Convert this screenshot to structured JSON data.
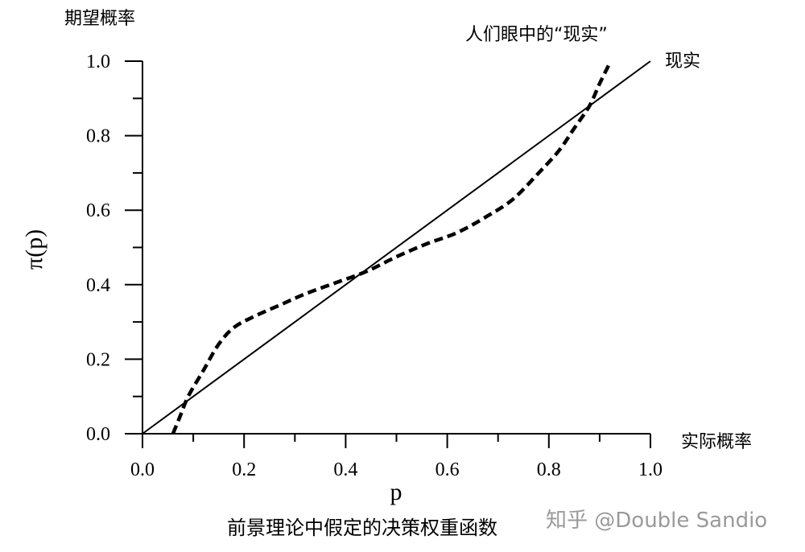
{
  "chart_data": {
    "type": "line",
    "ylabel": "π(p)",
    "xlabel": "p",
    "y_axis_caption": "期望概率",
    "x_axis_caption": "实际概率",
    "xlim": [
      0.0,
      1.0
    ],
    "ylim": [
      0.0,
      1.0
    ],
    "x_ticks": [
      "0.0",
      "0.2",
      "0.4",
      "0.6",
      "0.8",
      "1.0"
    ],
    "y_ticks": [
      "0.0",
      "0.2",
      "0.4",
      "0.6",
      "0.8",
      "1.0"
    ],
    "grid": false,
    "series": [
      {
        "name": "现实",
        "style": "solid",
        "x": [
          0.0,
          1.0
        ],
        "y": [
          0.0,
          1.0
        ]
      },
      {
        "name": "人们眼中的“现实”",
        "style": "dashed",
        "x": [
          0.06,
          0.075,
          0.09,
          0.12,
          0.15,
          0.18,
          0.22,
          0.27,
          0.32,
          0.38,
          0.44,
          0.5,
          0.56,
          0.62,
          0.68,
          0.73,
          0.78,
          0.82,
          0.85,
          0.88,
          0.9,
          0.92
        ],
        "y": [
          0.0,
          0.05,
          0.1,
          0.17,
          0.24,
          0.285,
          0.315,
          0.345,
          0.375,
          0.405,
          0.435,
          0.475,
          0.51,
          0.54,
          0.585,
          0.63,
          0.7,
          0.76,
          0.82,
          0.88,
          0.94,
          0.995
        ]
      }
    ]
  },
  "caption": "前景理论中假定的决策权重函数",
  "watermark": "知乎 @Double Sandio"
}
